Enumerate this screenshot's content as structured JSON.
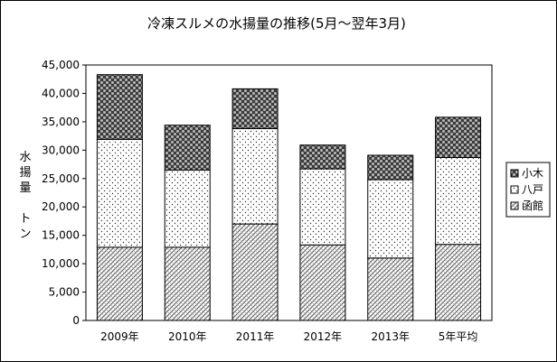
{
  "chart_data": {
    "type": "bar",
    "stacked": true,
    "title": "冷凍スルメの水揚量の推移(5月～翌年3月)",
    "ylabel": "水揚量 トン",
    "ylabel_lines": [
      "水",
      "揚",
      "量",
      "",
      "ト",
      "ン"
    ],
    "categories": [
      "2009年",
      "2010年",
      "2011年",
      "2012年",
      "2013年",
      "5年平均"
    ],
    "series": [
      {
        "name": "函館",
        "values": [
          12900,
          12900,
          17000,
          13300,
          11000,
          13400
        ]
      },
      {
        "name": "八戸",
        "values": [
          19000,
          13600,
          16800,
          13400,
          13800,
          15300
        ]
      },
      {
        "name": "小木",
        "values": [
          11400,
          7900,
          7000,
          4200,
          4300,
          7100
        ]
      }
    ],
    "ylim": [
      0,
      45000
    ],
    "yticks": [
      "0",
      "5,000",
      "10,000",
      "15,000",
      "20,000",
      "25,000",
      "30,000",
      "35,000",
      "40,000",
      "45,000"
    ],
    "legend_order": [
      "小木",
      "八戸",
      "函館"
    ],
    "legend_position": "right",
    "grid": false
  }
}
